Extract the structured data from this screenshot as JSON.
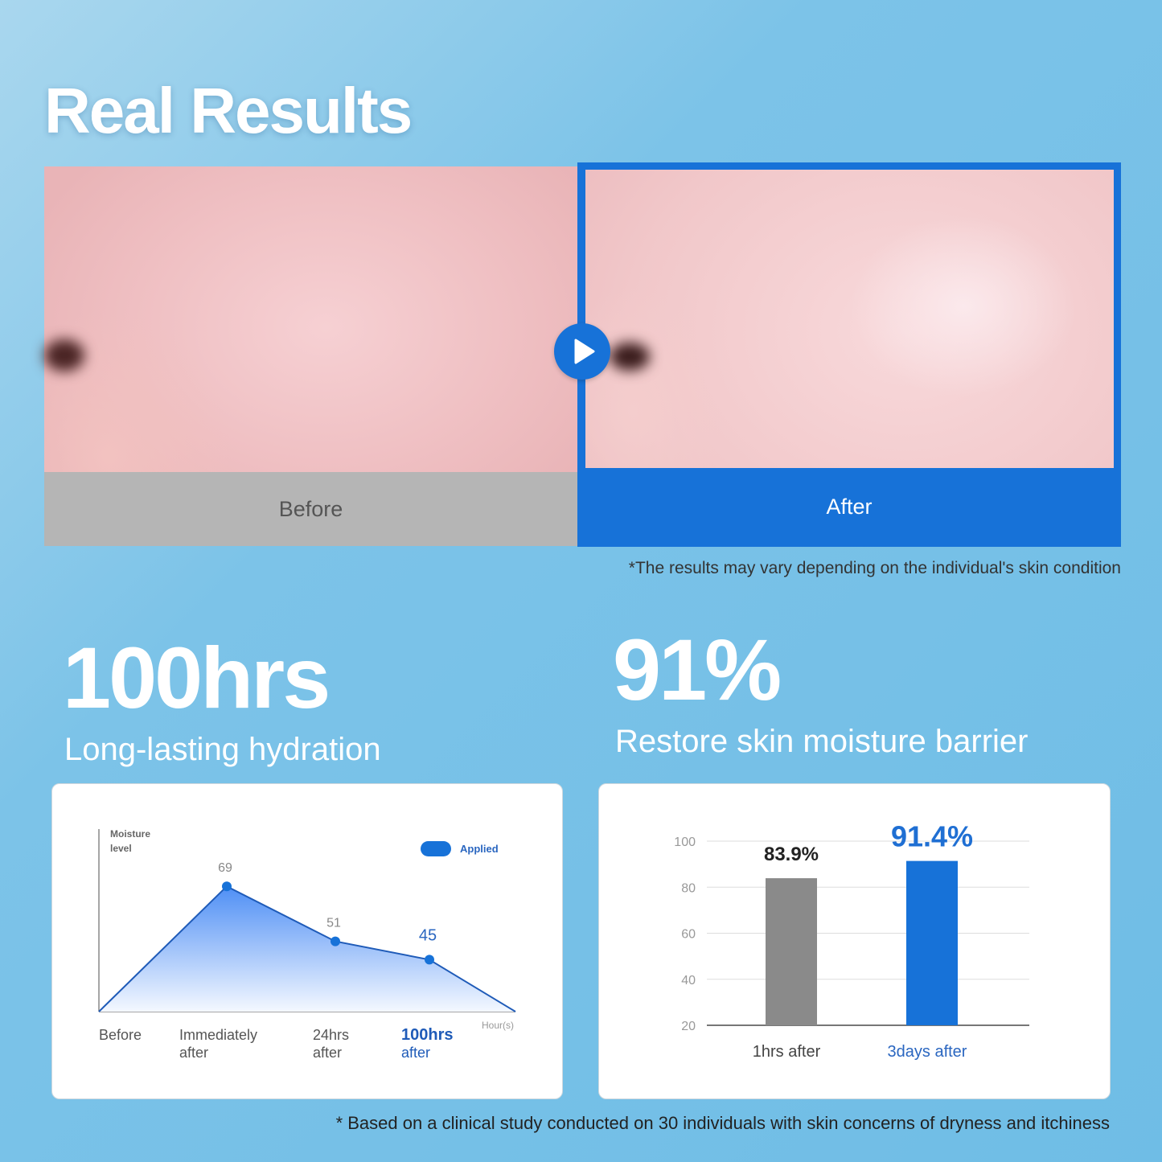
{
  "title": "Real Results",
  "comparison": {
    "before_label": "Before",
    "after_label": "After",
    "play_icon": "play-icon"
  },
  "disclaimer_results": "*The results may vary depending on the individual's skin condition",
  "stats": [
    {
      "value": "100hrs",
      "caption": "Long-lasting hydration"
    },
    {
      "value": "91%",
      "caption": "Restore skin moisture barrier"
    }
  ],
  "disclaimer_study": "* Based on a clinical study conducted on 30 individuals with skin concerns of dryness and itchiness",
  "colors": {
    "accent": "#1772d8",
    "before_gray": "#b5b5b5",
    "bar_gray": "#8a8a8a"
  },
  "chart_data": [
    {
      "type": "area",
      "ylabel": "Moisture level",
      "xlabel": "Hour(s)",
      "legend": {
        "entries": [
          "Applied"
        ],
        "placement": "top-right"
      },
      "categories": [
        [
          "Before"
        ],
        [
          "Immediately",
          "after"
        ],
        [
          "24hrs",
          "after"
        ],
        [
          "100hrs",
          "after"
        ]
      ],
      "series": [
        {
          "name": "Applied",
          "values": [
            null,
            69,
            51,
            45
          ]
        }
      ],
      "point_labels": [
        "69",
        "51",
        "45"
      ],
      "grid": false
    },
    {
      "type": "bar",
      "categories": [
        "1hrs after",
        "3days after"
      ],
      "values": [
        83.9,
        91.4
      ],
      "data_labels": [
        "83.9%",
        "91.4%"
      ],
      "yticks": [
        "20",
        "40",
        "60",
        "80",
        "100"
      ],
      "ylim": [
        20,
        100
      ],
      "grid": true
    }
  ]
}
